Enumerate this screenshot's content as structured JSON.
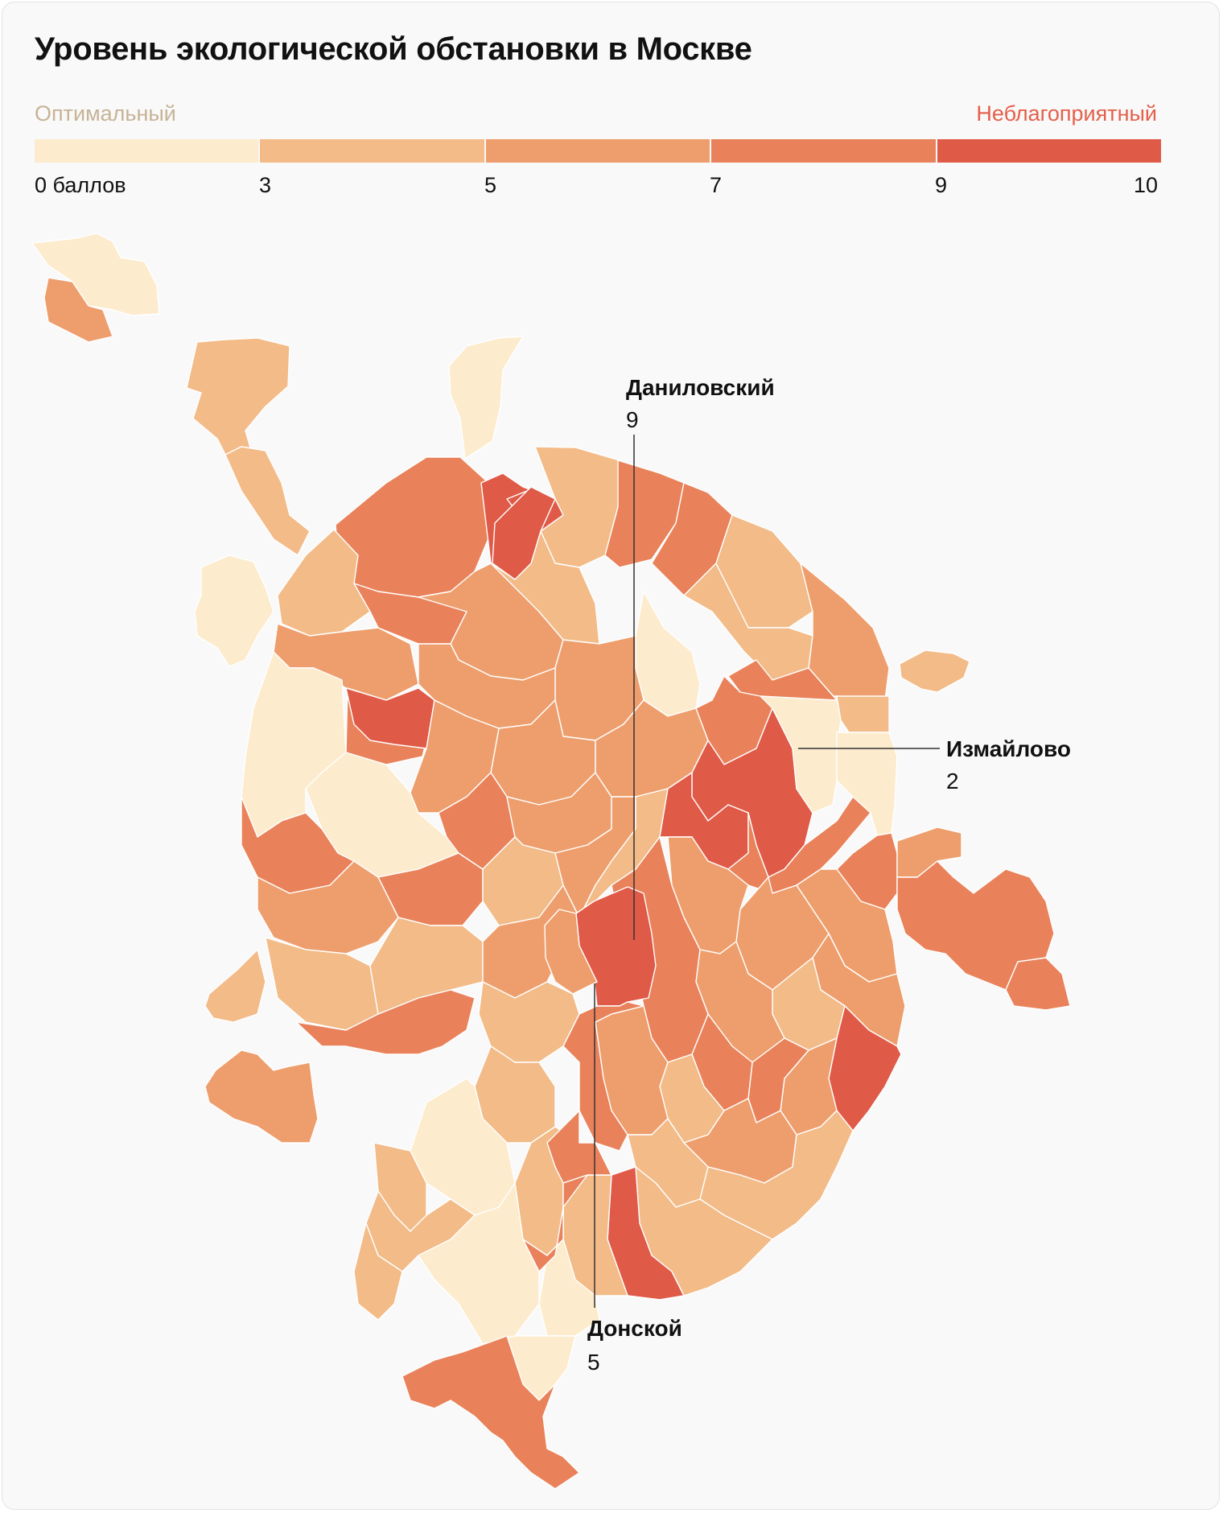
{
  "title": "Уровень экологической обстановки в Москве",
  "legend": {
    "low_label": "Оптимальный",
    "high_label": "Неблагоприятный",
    "segments": [
      {
        "from": 0,
        "to": 3,
        "color": "#fdebcd"
      },
      {
        "from": 3,
        "to": 5,
        "color": "#f2bb88"
      },
      {
        "from": 5,
        "to": 7,
        "color": "#ee9e6c"
      },
      {
        "from": 7,
        "to": 9,
        "color": "#e9825a"
      },
      {
        "from": 9,
        "to": 10,
        "color": "#e05a48"
      }
    ],
    "ticks": [
      "0 баллов",
      "3",
      "5",
      "7",
      "9",
      "10"
    ]
  },
  "callouts": [
    {
      "name": "Даниловский",
      "value": "9"
    },
    {
      "name": "Измайлово",
      "value": "2"
    },
    {
      "name": "Донской",
      "value": "5"
    }
  ]
}
